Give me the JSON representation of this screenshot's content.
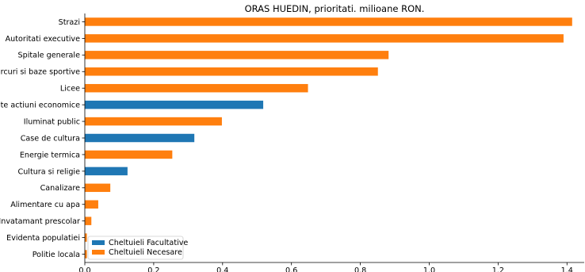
{
  "chart_data": {
    "type": "bar",
    "orientation": "horizontal",
    "title": "ORAS HUEDIN, prioritati.  milioane RON.",
    "xlabel": "",
    "ylabel": "",
    "xlim": [
      0,
      1.45
    ],
    "xticks": [
      "0.0",
      "0.2",
      "0.4",
      "0.6",
      "0.8",
      "1.0",
      "1.2",
      "1.4"
    ],
    "xtick_values": [
      0,
      0.2,
      0.4,
      0.6,
      0.8,
      1.0,
      1.2,
      1.4
    ],
    "grid": false,
    "legend_placement": "lower-left",
    "series": [
      {
        "name": "Cheltuieli Facultative",
        "color": "#1f77b4"
      },
      {
        "name": "Cheltuieli Necesare",
        "color": "#ff7f0e"
      }
    ],
    "bars": [
      {
        "category": "Strazi",
        "value": 1.415,
        "series": "Cheltuieli Necesare"
      },
      {
        "category": "Autoritati executive",
        "value": 1.39,
        "series": "Cheltuieli Necesare"
      },
      {
        "category": "Spitale generale",
        "value": 0.882,
        "series": "Cheltuieli Necesare"
      },
      {
        "category": "Parcuri si baze sportive",
        "value": 0.851,
        "series": "Cheltuieli Necesare"
      },
      {
        "category": "Licee",
        "value": 0.648,
        "series": "Cheltuieli Necesare"
      },
      {
        "category": "Alte actiuni economice",
        "value": 0.518,
        "series": "Cheltuieli Facultative"
      },
      {
        "category": "Iluminat public",
        "value": 0.398,
        "series": "Cheltuieli Necesare"
      },
      {
        "category": "Case de cultura",
        "value": 0.318,
        "series": "Cheltuieli Facultative"
      },
      {
        "category": "Energie termica",
        "value": 0.254,
        "series": "Cheltuieli Necesare"
      },
      {
        "category": "Cultura si religie",
        "value": 0.124,
        "series": "Cheltuieli Facultative"
      },
      {
        "category": "Canalizare",
        "value": 0.074,
        "series": "Cheltuieli Necesare"
      },
      {
        "category": "Alimentare cu apa",
        "value": 0.039,
        "series": "Cheltuieli Necesare"
      },
      {
        "category": "Invatamant prescolar",
        "value": 0.019,
        "series": "Cheltuieli Necesare"
      },
      {
        "category": "Evidenta populatiei",
        "value": 0.006,
        "series": "Cheltuieli Necesare"
      },
      {
        "category": "Politie locala",
        "value": 0.006,
        "series": "Cheltuieli Necesare"
      }
    ]
  }
}
